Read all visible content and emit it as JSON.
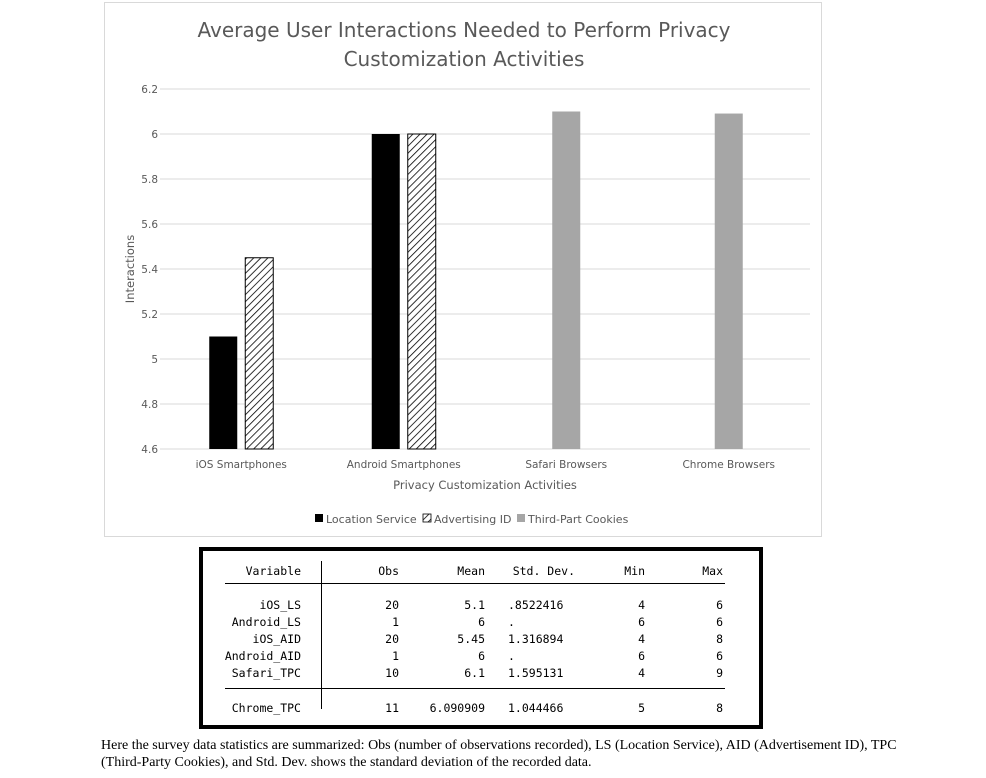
{
  "chart_data": {
    "type": "bar",
    "title_lines": [
      "Average User Interactions Needed to Perform Privacy",
      "Customization Activities"
    ],
    "xlabel": "Privacy Customization Activities",
    "ylabel": "Interactions",
    "ylim": [
      4.6,
      6.2
    ],
    "yticks": [
      4.6,
      4.8,
      5,
      5.2,
      5.4,
      5.6,
      5.8,
      6,
      6.2
    ],
    "ytick_labels": [
      "4.6",
      "4.8",
      "5",
      "5.2",
      "5.4",
      "5.6",
      "5.8",
      "6",
      "6.2"
    ],
    "grid": true,
    "legend_position": "bottom",
    "categories": [
      "iOS Smartphones",
      "Android Smartphones",
      "Safari Browsers",
      "Chrome Browsers"
    ],
    "series": [
      {
        "name": "Location Service",
        "values": [
          5.1,
          6,
          null,
          null
        ],
        "color": "#000000",
        "pattern": "solid"
      },
      {
        "name": "Advertising ID",
        "values": [
          5.45,
          6,
          null,
          null
        ],
        "color": "#000000",
        "pattern": "diagonal-hatch"
      },
      {
        "name": "Third-Part Cookies",
        "values": [
          null,
          null,
          6.1,
          6.090909
        ],
        "color": "#a6a6a6",
        "pattern": "solid"
      }
    ]
  },
  "table": {
    "headers": [
      "Variable",
      "Obs",
      "Mean",
      "Std. Dev.",
      "Min",
      "Max"
    ],
    "rows": [
      [
        "iOS_LS",
        "20",
        "5.1",
        ".8522416",
        "4",
        "6"
      ],
      [
        "Android_LS",
        "1",
        "6",
        ".",
        "6",
        "6"
      ],
      [
        "iOS_AID",
        "20",
        "5.45",
        "1.316894",
        "4",
        "8"
      ],
      [
        "Android_AID",
        "1",
        "6",
        ".",
        "6",
        "6"
      ],
      [
        "Safari_TPC",
        "10",
        "6.1",
        "1.595131",
        "4",
        "9"
      ],
      [
        "Chrome_TPC",
        "11",
        "6.090909",
        "1.044466",
        "5",
        "8"
      ]
    ]
  },
  "caption": "Here the survey data statistics are summarized: Obs (number of observations recorded), LS (Location Service), AID (Advertisement ID), TPC (Third-Party Cookies), and Std. Dev. shows the standard deviation of the recorded data."
}
